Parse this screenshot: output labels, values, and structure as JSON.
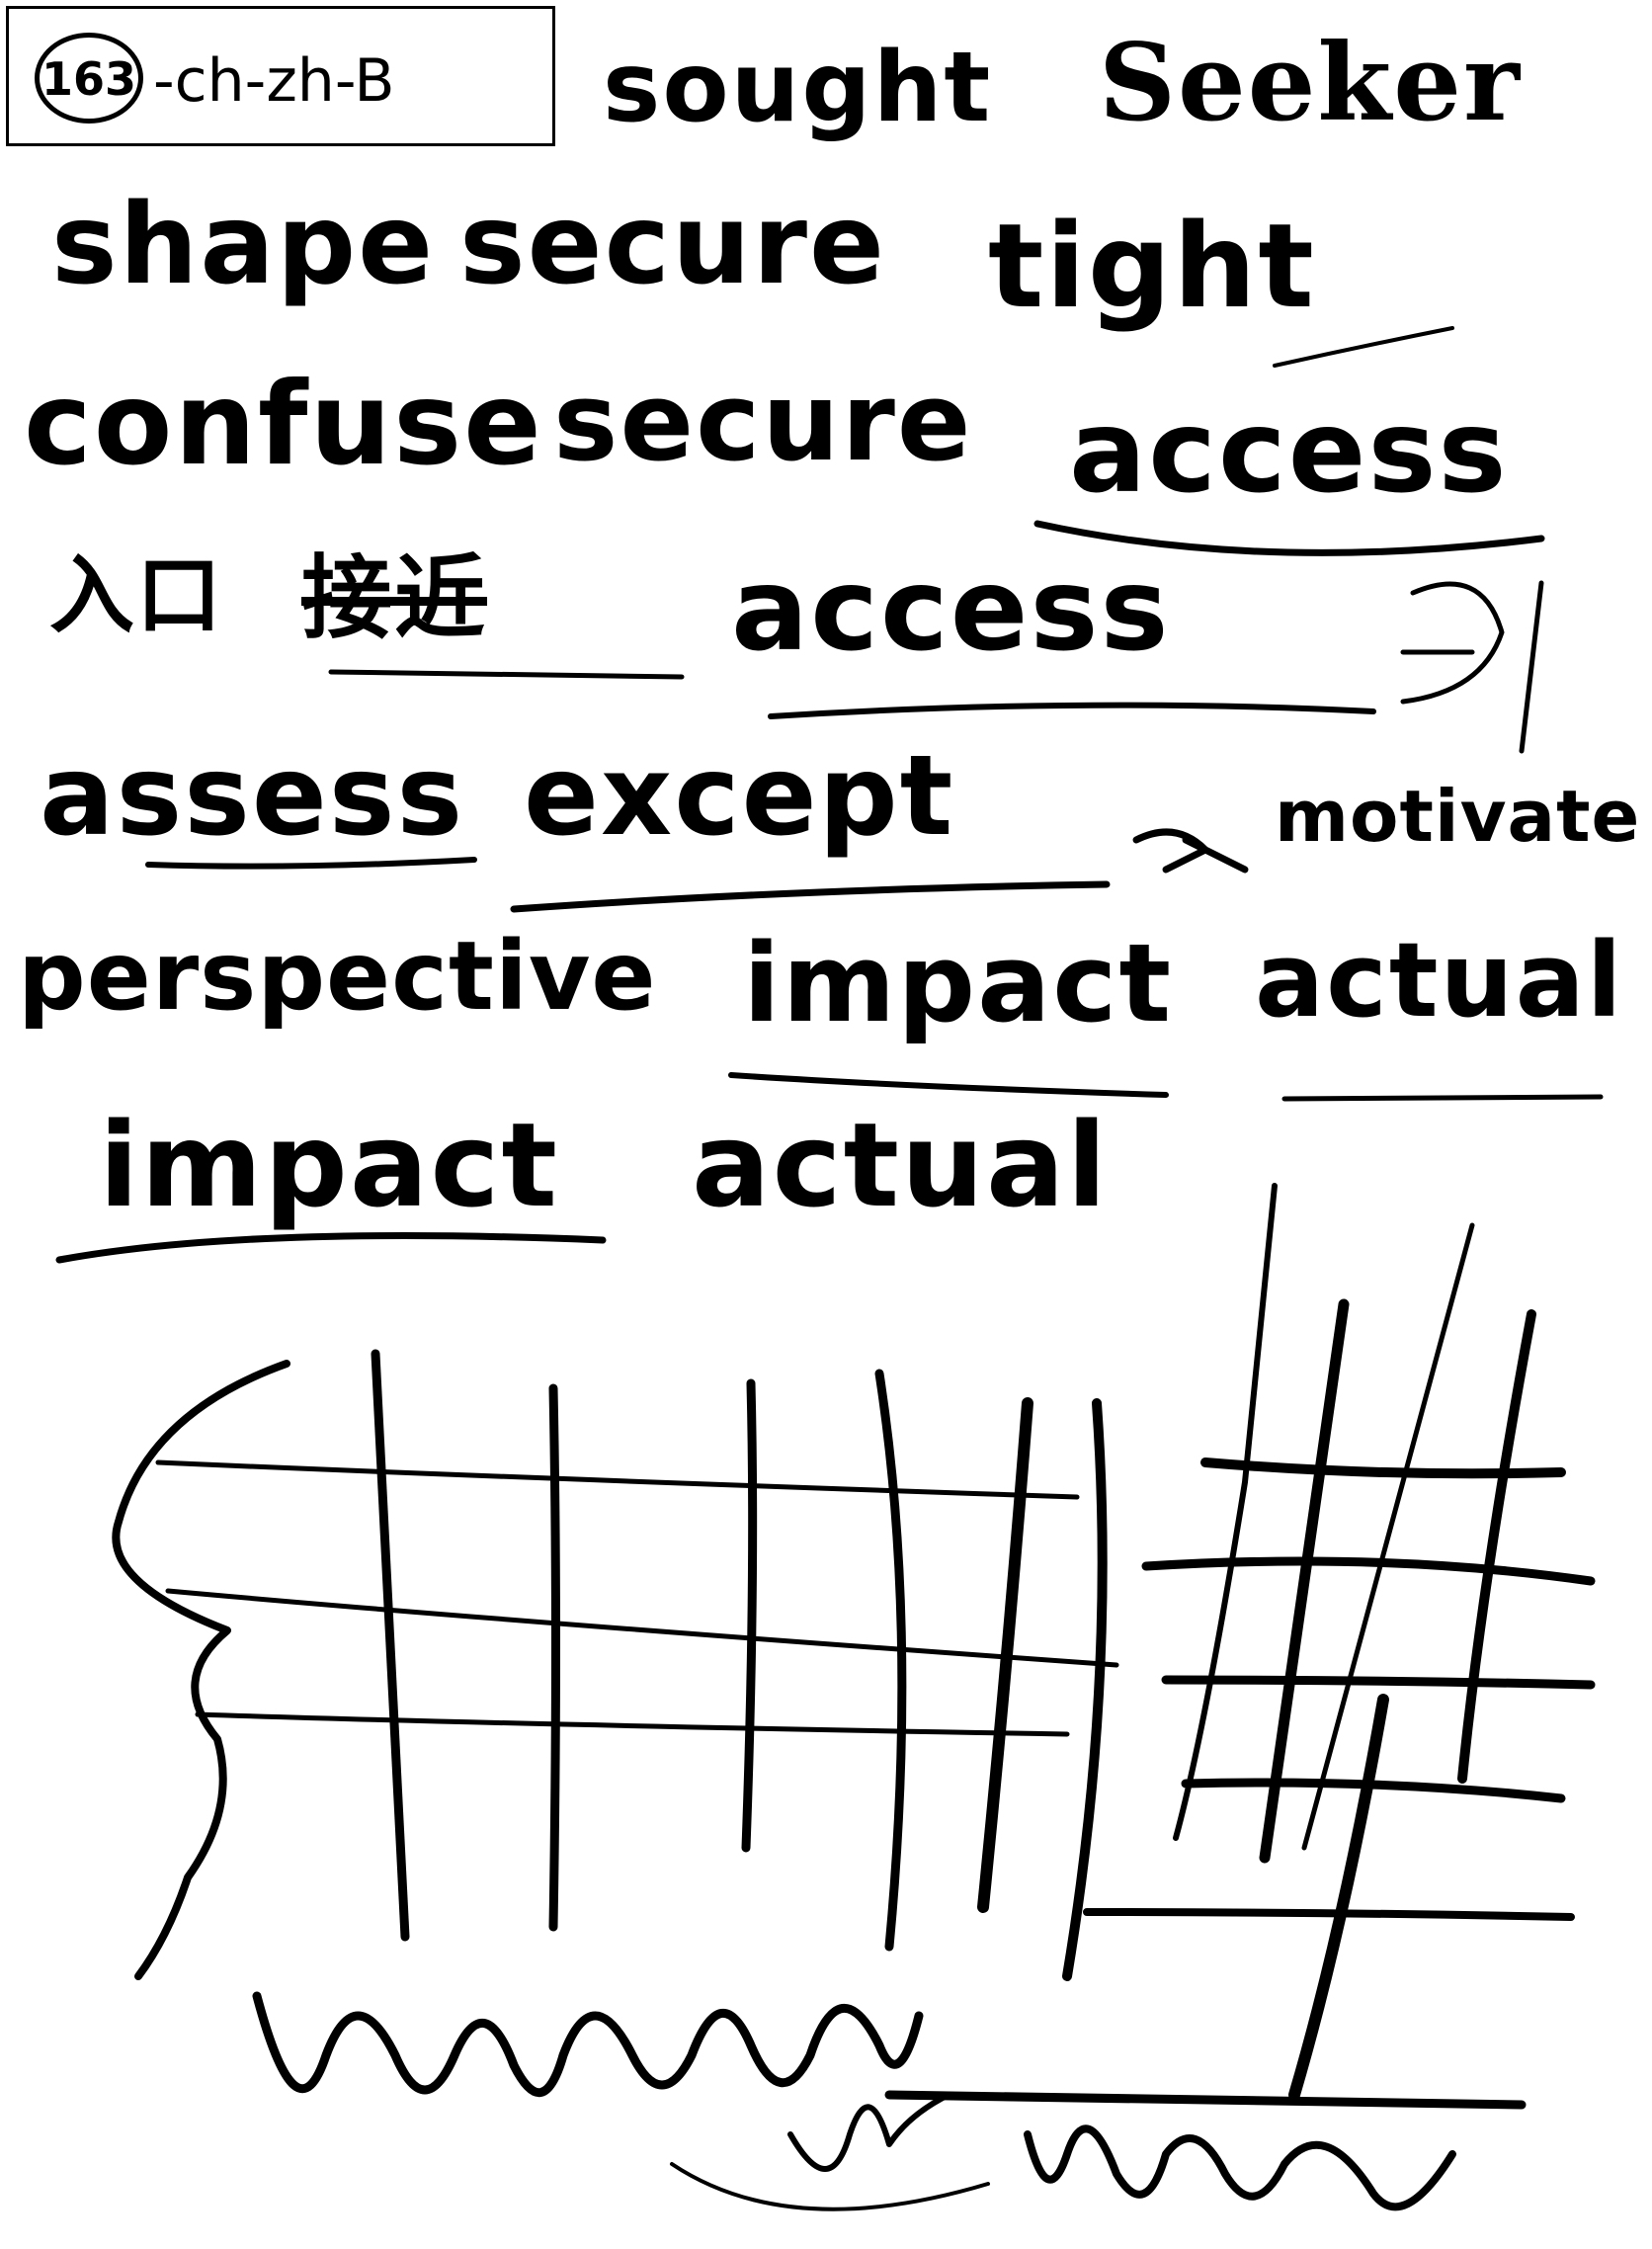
{
  "label": {
    "number": "163",
    "code": "-ch-zh-B"
  },
  "lines": [
    {
      "words": [
        "sought",
        "Seeker"
      ]
    },
    {
      "words": [
        "shape",
        "secure",
        "tight"
      ]
    },
    {
      "words": [
        "confuse",
        "secure",
        "access"
      ]
    },
    {
      "words": [
        "入口",
        "接近",
        "access"
      ]
    },
    {
      "words": [
        "assess",
        "except",
        "motivate"
      ]
    },
    {
      "words": [
        "perspective",
        "impact",
        "actual"
      ]
    },
    {
      "words": [
        "impact",
        "actual"
      ]
    }
  ]
}
